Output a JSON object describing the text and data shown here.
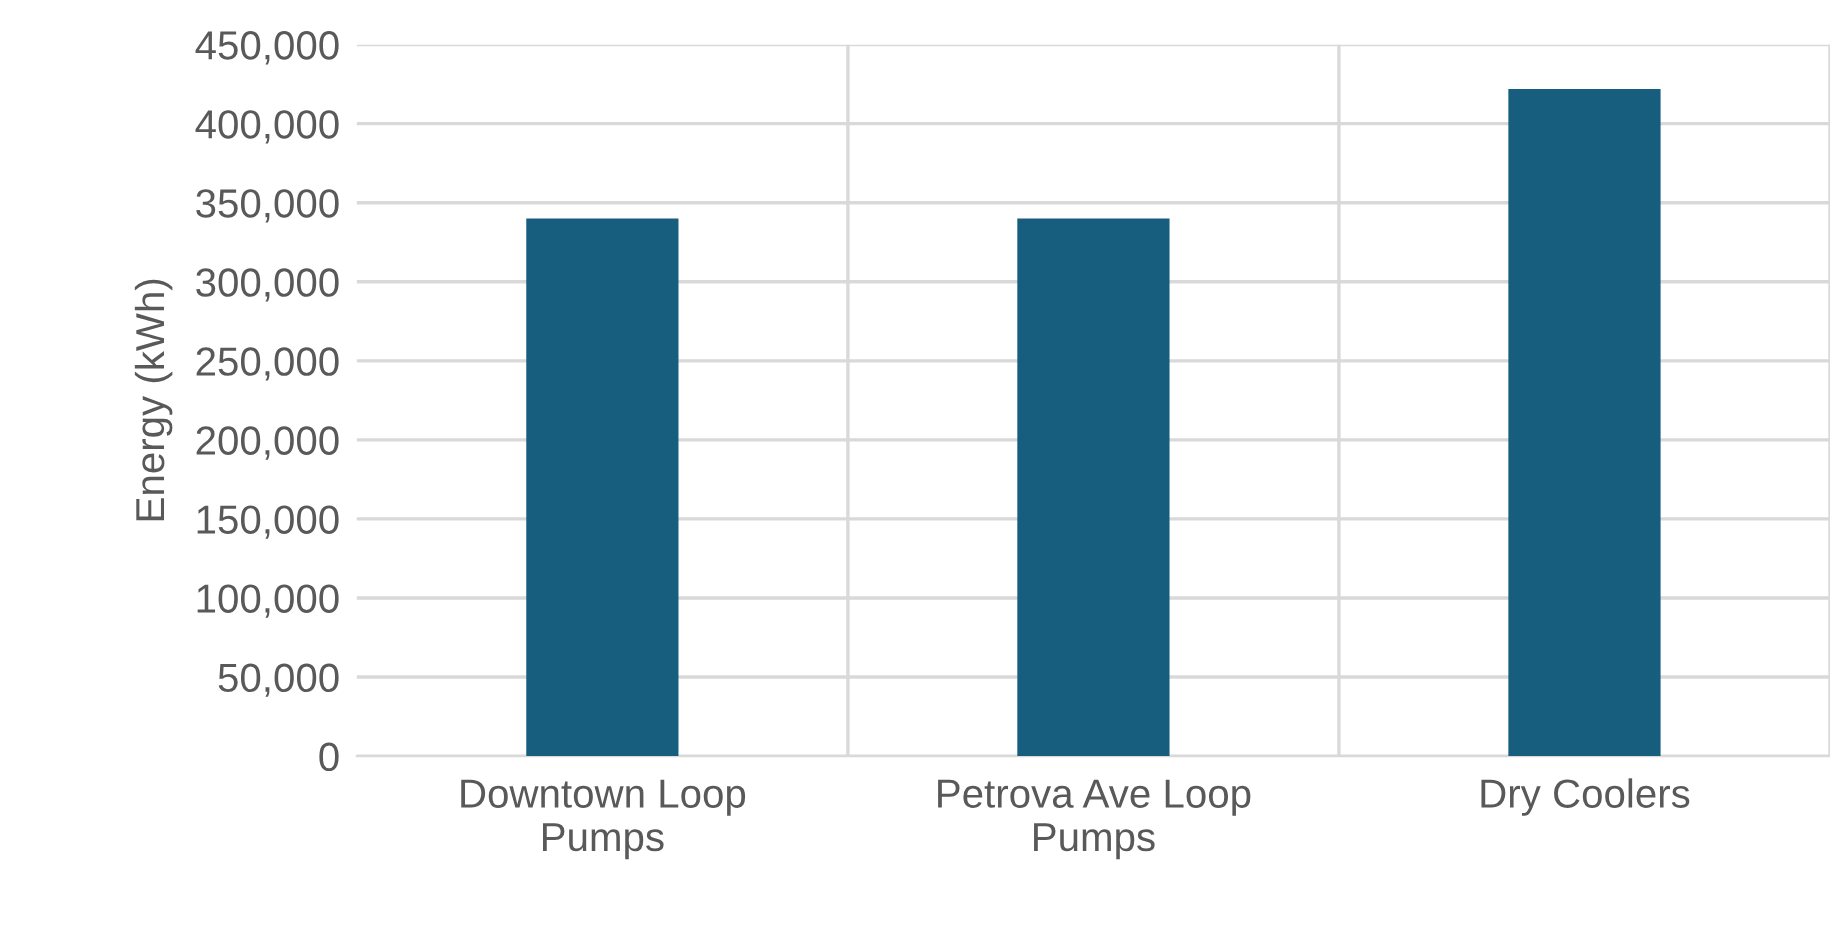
{
  "chart_data": {
    "type": "bar",
    "ylabel": "Energy (kWh)",
    "categories": [
      "Downtown Loop Pumps",
      "Petrova Ave Loop Pumps",
      "Dry Coolers"
    ],
    "values": [
      340000,
      340000,
      422000
    ],
    "color": "#175e7e",
    "ylim": [
      0,
      450000
    ],
    "yticks": [
      {
        "value": 0,
        "label": "0"
      },
      {
        "value": 50000,
        "label": "50,000"
      },
      {
        "value": 100000,
        "label": "100,000"
      },
      {
        "value": 150000,
        "label": "150,000"
      },
      {
        "value": 200000,
        "label": "200,000"
      },
      {
        "value": 250000,
        "label": "250,000"
      },
      {
        "value": 300000,
        "label": "300,000"
      },
      {
        "value": 350000,
        "label": "350,000"
      },
      {
        "value": 400000,
        "label": "400,000"
      },
      {
        "value": 450000,
        "label": "450,000"
      }
    ],
    "grid": true
  }
}
